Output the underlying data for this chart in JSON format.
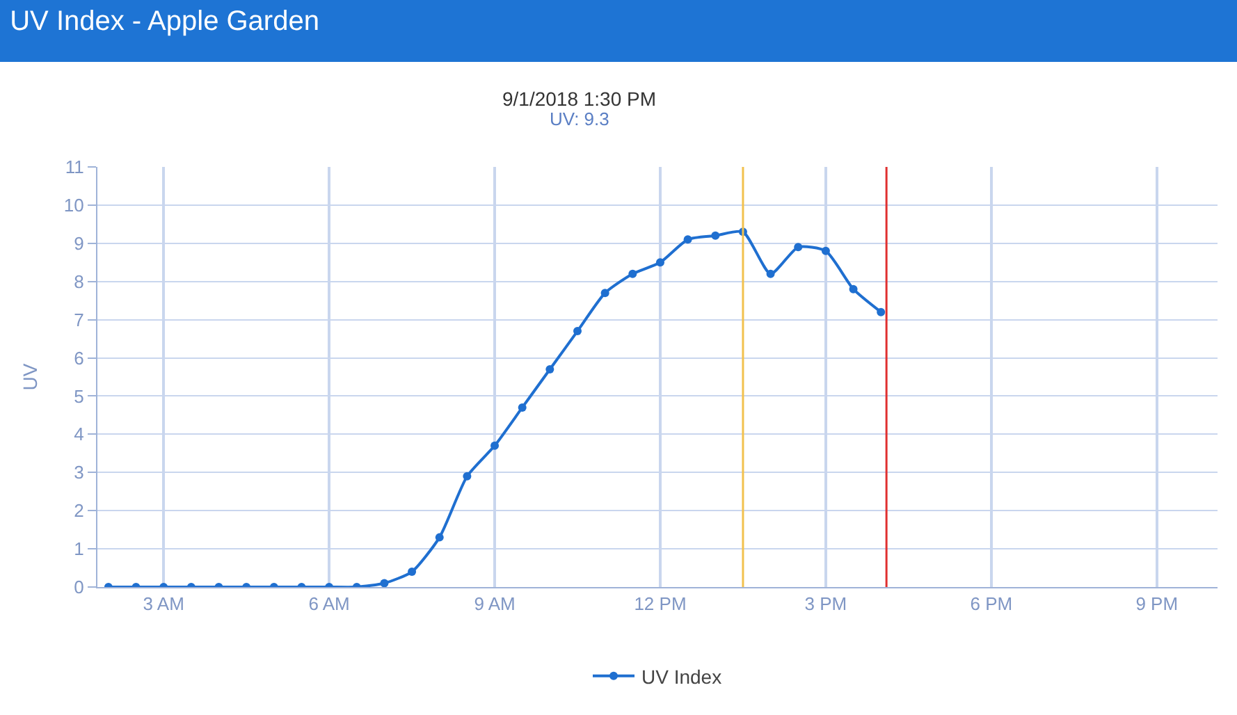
{
  "chart_data": {
    "type": "line",
    "title": "UV Index - Apple Garden",
    "ylabel": "UV",
    "annotations": [
      "9/1/2018 1:30 PM",
      "UV: 9.3"
    ],
    "x": [
      "2018-09-01T02:00",
      "2018-09-01T02:30",
      "2018-09-01T03:00",
      "2018-09-01T03:30",
      "2018-09-01T04:00",
      "2018-09-01T04:30",
      "2018-09-01T05:00",
      "2018-09-01T05:30",
      "2018-09-01T06:00",
      "2018-09-01T06:30",
      "2018-09-01T07:00",
      "2018-09-01T07:30",
      "2018-09-01T08:00",
      "2018-09-01T08:30",
      "2018-09-01T09:00",
      "2018-09-01T09:30",
      "2018-09-01T10:00",
      "2018-09-01T10:30",
      "2018-09-01T11:00",
      "2018-09-01T11:30",
      "2018-09-01T12:00",
      "2018-09-01T12:30",
      "2018-09-01T13:00",
      "2018-09-01T13:30",
      "2018-09-01T14:00",
      "2018-09-01T14:30",
      "2018-09-01T15:00",
      "2018-09-01T15:30",
      "2018-09-01T16:00"
    ],
    "series": [
      {
        "name": "UV Index",
        "color": "#1f6fd0",
        "values": [
          0,
          0,
          0,
          0,
          0,
          0,
          0,
          0,
          0,
          0,
          0.1,
          0.4,
          1.3,
          2.9,
          3.7,
          4.7,
          5.7,
          6.7,
          7.7,
          8.2,
          8.5,
          9.1,
          9.2,
          9.3,
          8.2,
          8.9,
          8.8,
          7.8,
          7.2
        ]
      }
    ],
    "xlim": [
      "2018-09-01T01:48",
      "2018-09-01T22:06"
    ],
    "xticks": [
      {
        "value": "2018-09-01T03:00",
        "label": "3 AM"
      },
      {
        "value": "2018-09-01T06:00",
        "label": "6 AM"
      },
      {
        "value": "2018-09-01T09:00",
        "label": "9 AM"
      },
      {
        "value": "2018-09-01T12:00",
        "label": "12 PM"
      },
      {
        "value": "2018-09-01T15:00",
        "label": "3 PM"
      },
      {
        "value": "2018-09-01T18:00",
        "label": "6 PM"
      },
      {
        "value": "2018-09-01T21:00",
        "label": "9 PM"
      }
    ],
    "ylim": [
      0,
      11
    ],
    "yticks": [
      0,
      1,
      2,
      3,
      4,
      5,
      6,
      7,
      8,
      9,
      10,
      11
    ],
    "ref_lines": [
      {
        "axis": "x",
        "value": "2018-09-01T13:30",
        "color": "#f2c14e"
      },
      {
        "axis": "x",
        "value": "2018-09-01T16:06",
        "color": "#e03030"
      }
    ],
    "grid": true,
    "legend": "bottom",
    "marker": "circle",
    "line_style": "solid"
  }
}
